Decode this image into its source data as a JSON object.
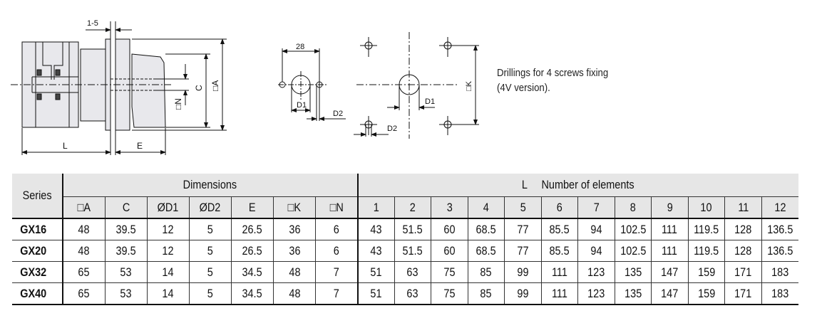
{
  "drawing": {
    "side_view_labels": {
      "gap": "1-5",
      "L": "L",
      "E": "E",
      "C": "C",
      "A": "□A",
      "N": "□N"
    },
    "drilling_2_screw_labels": {
      "spacing": "28",
      "D1": "D1",
      "D2": "D2"
    },
    "drilling_4_screw_labels": {
      "K": "□K",
      "D1": "D1",
      "D2": "D2"
    },
    "note_line1": "Drillings for 4 screws fixing",
    "note_line2": "(4V version)."
  },
  "table": {
    "series_header": "Series",
    "dimensions_header": "Dimensions",
    "l_header": "L     Number of elements",
    "dimension_columns": [
      "□A",
      "C",
      "ØD1",
      "ØD2",
      "E",
      "□K",
      "□N"
    ],
    "element_columns": [
      "1",
      "2",
      "3",
      "4",
      "5",
      "6",
      "7",
      "8",
      "9",
      "10",
      "11",
      "12"
    ],
    "rows": [
      {
        "series": "GX16",
        "dims": [
          "48",
          "39.5",
          "12",
          "5",
          "26.5",
          "36",
          "6"
        ],
        "L": [
          "43",
          "51.5",
          "60",
          "68.5",
          "77",
          "85.5",
          "94",
          "102.5",
          "111",
          "119.5",
          "128",
          "136.5"
        ]
      },
      {
        "series": "GX20",
        "dims": [
          "48",
          "39.5",
          "12",
          "5",
          "26.5",
          "36",
          "6"
        ],
        "L": [
          "43",
          "51.5",
          "60",
          "68.5",
          "77",
          "85.5",
          "94",
          "102.5",
          "111",
          "119.5",
          "128",
          "136.5"
        ]
      },
      {
        "series": "GX32",
        "dims": [
          "65",
          "53",
          "14",
          "5",
          "34.5",
          "48",
          "7"
        ],
        "L": [
          "51",
          "63",
          "75",
          "85",
          "99",
          "111",
          "123",
          "135",
          "147",
          "159",
          "171",
          "183"
        ]
      },
      {
        "series": "GX40",
        "dims": [
          "65",
          "53",
          "14",
          "5",
          "34.5",
          "48",
          "7"
        ],
        "L": [
          "51",
          "63",
          "75",
          "85",
          "99",
          "111",
          "123",
          "135",
          "147",
          "159",
          "171",
          "183"
        ]
      }
    ]
  }
}
